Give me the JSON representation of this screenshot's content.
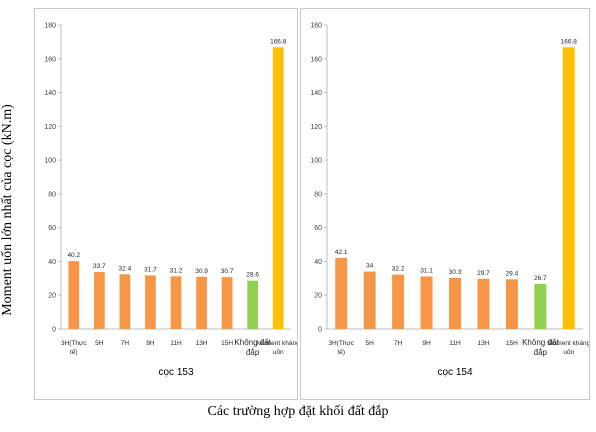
{
  "ylabel": "Moment uốn lớn nhất của cọc (kN.m)",
  "xlabel": "Các trường hợp đặt khối đất đắp",
  "colors": {
    "normal": "#f79646",
    "no_fill": "#92d050",
    "capacity": "#ffc000"
  },
  "chart_data": [
    {
      "type": "bar",
      "title": "cọc 153",
      "ylim": [
        0,
        180
      ],
      "yticks": [
        0,
        20,
        40,
        60,
        80,
        100,
        120,
        140,
        160,
        180
      ],
      "categories": [
        "3H(Thực tế)",
        "5H",
        "7H",
        "9H",
        "11H",
        "13H",
        "15H",
        "Không đất đắp",
        "Moment kháng uốn"
      ],
      "values": [
        40.2,
        33.7,
        32.4,
        31.7,
        31.2,
        30.9,
        30.7,
        28.6,
        166.8
      ],
      "value_labels": [
        "40.2",
        "33.7",
        "32.4",
        "31.7",
        "31.2",
        "30.9",
        "30.7",
        "28.6",
        "166.8"
      ],
      "grid": false
    },
    {
      "type": "bar",
      "title": "cọc 154",
      "ylim": [
        0,
        180
      ],
      "yticks": [
        0,
        20,
        40,
        60,
        80,
        100,
        120,
        140,
        160,
        180
      ],
      "categories": [
        "3H(Thực tế)",
        "5H",
        "7H",
        "9H",
        "11H",
        "13H",
        "15H",
        "Không đất đắp",
        "Moment kháng uốn"
      ],
      "values": [
        42.1,
        34,
        32.2,
        31.1,
        30.3,
        29.7,
        29.4,
        26.7,
        166.8
      ],
      "value_labels": [
        "42.1",
        "34",
        "32.2",
        "31.1",
        "30.3",
        "29.7",
        "29.4",
        "26.7",
        "166.8"
      ],
      "grid": false
    }
  ]
}
